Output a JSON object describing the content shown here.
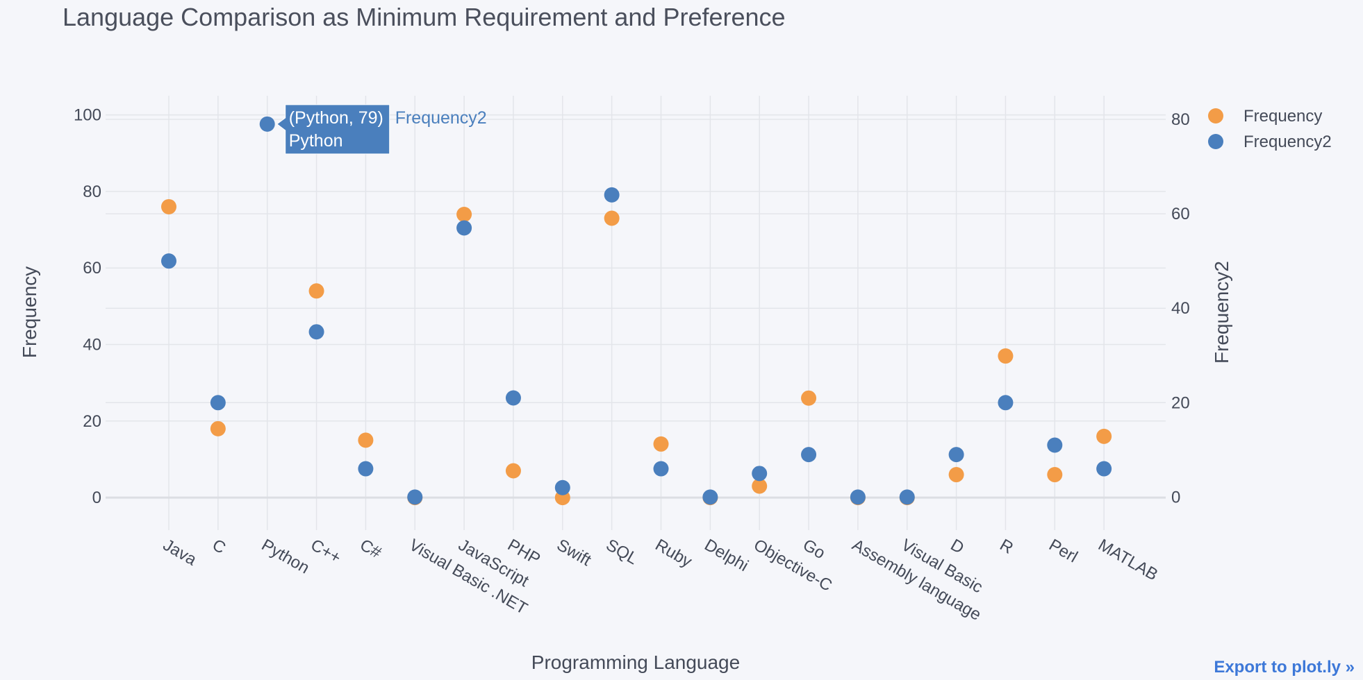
{
  "chart_data": {
    "type": "scatter",
    "title": "Language Comparison as Minimum Requirement and Preference",
    "xlabel": "Programming Language",
    "ylabel": "Frequency",
    "y2label": "Frequency2",
    "categories": [
      "Java",
      "C",
      "Python",
      "C++",
      "C#",
      "Visual Basic .NET",
      "JavaScript",
      "PHP",
      "Swift",
      "SQL",
      "Ruby",
      "Delphi",
      "Objective-C",
      "Go",
      "Assembly language",
      "Visual Basic",
      "D",
      "R",
      "Perl",
      "MATLAB"
    ],
    "series": [
      {
        "name": "Frequency",
        "axis": "left",
        "color": "#f39c47",
        "values": [
          76,
          18,
          null,
          54,
          15,
          0,
          74,
          7,
          0,
          73,
          14,
          0,
          3,
          26,
          0,
          0,
          6,
          37,
          6,
          16
        ]
      },
      {
        "name": "Frequency2",
        "axis": "right",
        "color": "#4a7fbd",
        "values": [
          50,
          20,
          79,
          35,
          6,
          0,
          57,
          21,
          2,
          64,
          6,
          0,
          5,
          9,
          0,
          0,
          9,
          20,
          11,
          6
        ]
      }
    ],
    "ylim": [
      -8.5,
      105
    ],
    "y2lim": [
      -7,
      85
    ],
    "yticks": [
      "0",
      "20",
      "40",
      "60",
      "80",
      "100"
    ],
    "y2ticks": [
      "0",
      "20",
      "40",
      "60",
      "80"
    ],
    "grid": true,
    "legend_position": "top-right",
    "hover": {
      "lines": [
        "(Python, 79)",
        "Python"
      ],
      "series_label": "Frequency2",
      "category": "Python"
    }
  },
  "export_label": "Export to plot.ly »"
}
